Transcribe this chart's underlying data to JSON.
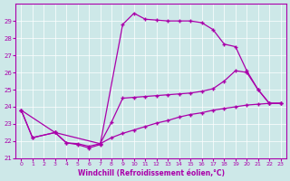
{
  "xlabel": "Windchill (Refroidissement éolien,°C)",
  "bg_color": "#cde8e8",
  "line_color": "#aa00aa",
  "xlim": [
    -0.5,
    23.5
  ],
  "ylim": [
    21,
    30
  ],
  "yticks": [
    21,
    22,
    23,
    24,
    25,
    26,
    27,
    28,
    29
  ],
  "xticks": [
    0,
    1,
    2,
    3,
    4,
    5,
    6,
    7,
    8,
    9,
    10,
    11,
    12,
    13,
    14,
    15,
    16,
    17,
    18,
    19,
    20,
    21,
    22,
    23
  ],
  "s1_x": [
    0,
    1,
    3,
    4,
    5,
    6,
    7,
    9,
    10,
    11,
    12,
    13,
    14,
    15,
    16,
    17,
    18,
    19,
    20,
    21,
    22,
    23
  ],
  "s1_y": [
    23.8,
    22.2,
    22.5,
    21.9,
    21.8,
    21.6,
    21.8,
    28.8,
    29.45,
    29.1,
    29.05,
    29.0,
    29.0,
    29.0,
    28.9,
    28.5,
    27.65,
    27.5,
    26.1,
    25.0,
    24.2,
    24.2
  ],
  "s2_x": [
    0,
    1,
    3,
    4,
    5,
    6,
    7,
    8,
    9,
    10,
    11,
    12,
    13,
    14,
    15,
    16,
    17,
    18,
    19,
    20,
    21,
    22,
    23
  ],
  "s2_y": [
    23.8,
    22.2,
    22.5,
    21.9,
    21.85,
    21.7,
    21.85,
    22.2,
    22.45,
    22.65,
    22.85,
    23.05,
    23.2,
    23.4,
    23.55,
    23.65,
    23.8,
    23.9,
    24.0,
    24.1,
    24.15,
    24.2,
    24.2
  ],
  "s3_x": [
    0,
    3,
    7,
    8,
    9,
    10,
    11,
    12,
    13,
    14,
    15,
    16,
    17,
    18,
    19,
    20,
    21,
    22,
    23
  ],
  "s3_y": [
    23.8,
    22.5,
    21.85,
    23.1,
    24.5,
    24.55,
    24.6,
    24.65,
    24.7,
    24.75,
    24.8,
    24.9,
    25.05,
    25.5,
    26.1,
    26.0,
    25.0,
    24.2,
    24.2
  ],
  "marker": "+",
  "markersize": 3,
  "linewidth": 0.9
}
